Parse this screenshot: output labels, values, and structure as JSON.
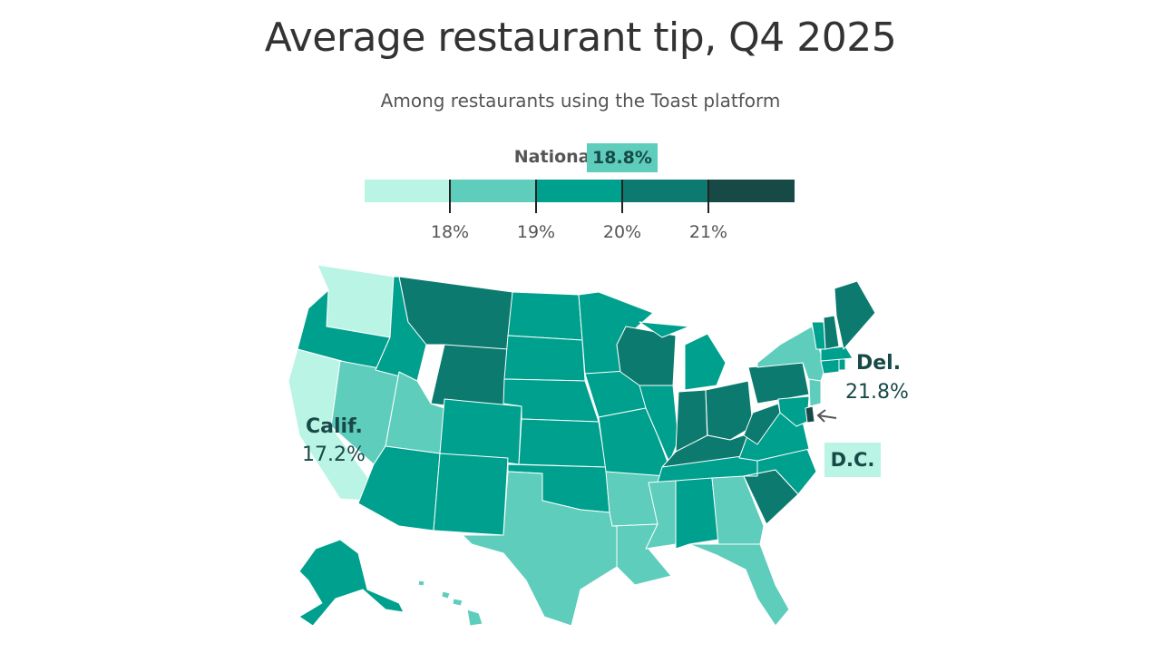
{
  "title": "Average restaurant tip, Q4 2025",
  "subtitle": "Among restaurants using the Toast platform",
  "national": {
    "label": "National",
    "value": "18.8%"
  },
  "legend": {
    "bins": [
      {
        "color": "#b9f4e4"
      },
      {
        "color": "#5ecdbc"
      },
      {
        "color": "#00a08e"
      },
      {
        "color": "#0c7a6e"
      },
      {
        "color": "#174a47"
      }
    ],
    "ticks": [
      "18%",
      "19%",
      "20%",
      "21%"
    ]
  },
  "annotations": {
    "california": {
      "name": "Calif.",
      "value": "17.2%"
    },
    "delaware": {
      "name": "Del.",
      "value": "21.8%"
    },
    "dc": {
      "name": "D.C."
    }
  },
  "chart_data": {
    "type": "choropleth",
    "title": "Average restaurant tip, Q4 2025",
    "subtitle": "Among restaurants using the Toast platform",
    "national": "18.8%",
    "legend_thresholds": [
      18,
      19,
      20,
      21
    ],
    "states": {
      "WA": "<18%",
      "OR": "19-20%",
      "CA": "17.2%",
      "NV": "18-19%",
      "ID": "19-20%",
      "MT": "20-21%",
      "WY": "20-21%",
      "UT": "18-19%",
      "AZ": "19-20%",
      "CO": "19-20%",
      "NM": "19-20%",
      "ND": "19-20%",
      "SD": "19-20%",
      "NE": "19-20%",
      "KS": "19-20%",
      "OK": "19-20%",
      "TX": "18-19%",
      "MN": "19-20%",
      "IA": "19-20%",
      "MO": "19-20%",
      "AR": "18-19%",
      "LA": "18-19%",
      "WI": "20-21%",
      "IL": "19-20%",
      "MI": "19-20%",
      "IN": "20-21%",
      "OH": "20-21%",
      "KY": "20-21%",
      "TN": "19-20%",
      "MS": "18-19%",
      "AL": "19-20%",
      "GA": "18-19%",
      "FL": "18-19%",
      "SC": "20-21%",
      "NC": "19-20%",
      "VA": "19-20%",
      "WV": "20-21%",
      "PA": "20-21%",
      "NY": "18-19%",
      "NJ": "18-19%",
      "DE": "21.8%",
      "MD": "19-20%",
      "DC": "<18%",
      "CT": "19-20%",
      "RI": "19-20%",
      "MA": "19-20%",
      "VT": "19-20%",
      "NH": "20-21%",
      "ME": "20-21%",
      "AK": "19-20%",
      "HI": "18-19%"
    }
  }
}
